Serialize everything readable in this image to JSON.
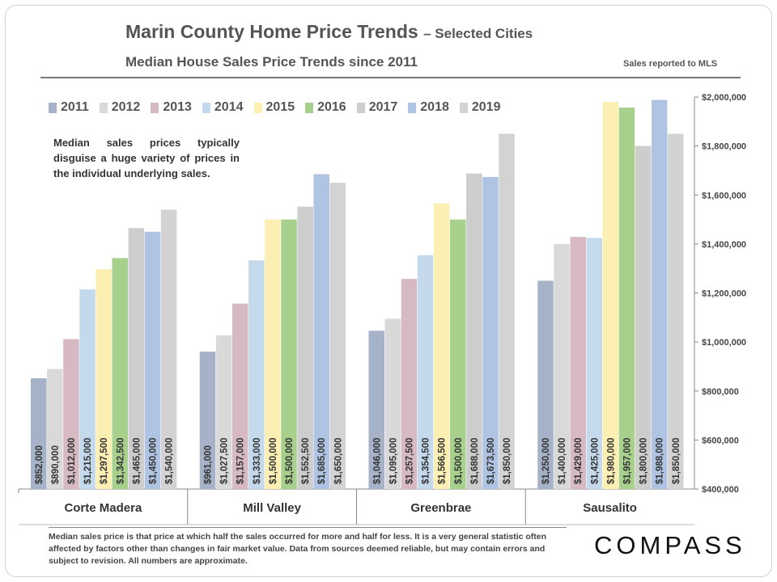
{
  "title": "Marin County Home Price Trends",
  "title_suffix": "– Selected Cities",
  "subtitle": "Median House Sales Price Trends since 2011",
  "source_note": "Sales reported to MLS",
  "annotation": "Median sales prices typically disguise a huge variety of prices in the individual underlying sales.",
  "footnote": "Median sales price is that price at which half the sales occurred for more and half for less. It is a very general statistic often affected by factors other than changes in fair market value. Data from sources deemed reliable, but may contain errors and subject to revision. All numbers are approximate.",
  "logo_text": "COMPASS",
  "colors": {
    "2011": "#a6b2c7",
    "2012": "#d9d9d9",
    "2013": "#d6b9c2",
    "2014": "#c5d9ec",
    "2015": "#fbefb3",
    "2016": "#a8d08d",
    "2017": "#cdcdcd",
    "2018": "#afc3e3",
    "2019": "#d3d3d3"
  },
  "chart_data": {
    "type": "bar",
    "title": "Marin County Home Price Trends – Selected Cities",
    "subtitle": "Median House Sales Price Trends since 2011",
    "categories": [
      "Corte Madera",
      "Mill Valley",
      "Greenbrae",
      "Sausalito"
    ],
    "ylim": [
      400000,
      2000000
    ],
    "yticks": [
      "$400,000",
      "$600,000",
      "$800,000",
      "$1,000,000",
      "$1,200,000",
      "$1,400,000",
      "$1,600,000",
      "$1,800,000",
      "$2,000,000"
    ],
    "ytick_values": [
      400000,
      600000,
      800000,
      1000000,
      1200000,
      1400000,
      1600000,
      1800000,
      2000000
    ],
    "legend_position": "top-left",
    "grid": false,
    "series": [
      {
        "name": "2011",
        "values": [
          852000,
          961000,
          1046000,
          1250000
        ],
        "labels": [
          "$852,000",
          "$961,000",
          "$1,046,000",
          "$1,250,000"
        ]
      },
      {
        "name": "2012",
        "values": [
          890000,
          1027500,
          1095000,
          1400000
        ],
        "labels": [
          "$890,000",
          "$1,027,500",
          "$1,095,000",
          "$1,400,000"
        ]
      },
      {
        "name": "2013",
        "values": [
          1012000,
          1157000,
          1257500,
          1429000
        ],
        "labels": [
          "$1,012,000",
          "$1,157,000",
          "$1,257,500",
          "$1,429,000"
        ]
      },
      {
        "name": "2014",
        "values": [
          1215000,
          1333000,
          1354500,
          1425000
        ],
        "labels": [
          "$1,215,000",
          "$1,333,000",
          "$1,354,500",
          "$1,425,000"
        ]
      },
      {
        "name": "2015",
        "values": [
          1297500,
          1500000,
          1566500,
          1980000
        ],
        "labels": [
          "$1,297,500",
          "$1,500,000",
          "$1,566,500",
          "$1,980,000"
        ]
      },
      {
        "name": "2016",
        "values": [
          1342500,
          1500000,
          1500000,
          1957000
        ],
        "labels": [
          "$1,342,500",
          "$1,500,000",
          "$1,500,000",
          "$1,957,000"
        ]
      },
      {
        "name": "2017",
        "values": [
          1465000,
          1552500,
          1688000,
          1800000
        ],
        "labels": [
          "$1,465,000",
          "$1,552,500",
          "$1,688,000",
          "$1,800,000"
        ]
      },
      {
        "name": "2018",
        "values": [
          1450000,
          1685000,
          1673500,
          1988000
        ],
        "labels": [
          "$1,450,000",
          "$1,685,000",
          "$1,673,500",
          "$1,988,000"
        ]
      },
      {
        "name": "2019",
        "values": [
          1540000,
          1650000,
          1850000,
          1850000
        ],
        "labels": [
          "$1,540,000",
          "$1,650,000",
          "$1,850,000",
          "$1,850,000"
        ]
      }
    ]
  }
}
